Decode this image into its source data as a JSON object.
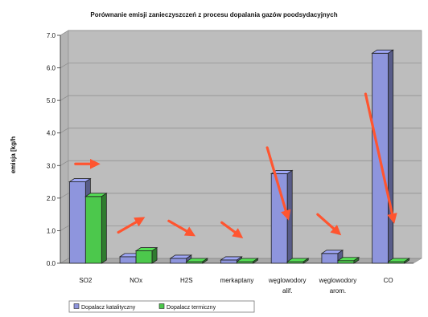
{
  "chart_data": {
    "type": "bar",
    "title": "Porównanie emisji zanieczyszczeń z procesu dopalania gazów poodsydacyjnych",
    "xlabel": "",
    "ylabel": "emisja [kg/h",
    "ylim": [
      0,
      7
    ],
    "yticks": [
      "0.0",
      "1.0",
      "2.0",
      "3.0",
      "4.0",
      "5.0",
      "6.0",
      "7.0"
    ],
    "grid": true,
    "legend_position": "bottom-left",
    "categories": [
      [
        "SO2"
      ],
      [
        "NOx"
      ],
      [
        "H2S"
      ],
      [
        "merkaptany"
      ],
      [
        "węglowodory",
        "alif."
      ],
      [
        "węglowodory",
        "arom."
      ],
      [
        "CO"
      ]
    ],
    "series": [
      {
        "name": "Dopalacz katalityczny",
        "color": "#8e95dd",
        "values": [
          2.5,
          0.2,
          0.15,
          0.1,
          2.75,
          0.3,
          6.45
        ]
      },
      {
        "name": "Dopalacz termiczny",
        "color": "#4cc84c",
        "values": [
          2.05,
          0.38,
          0.05,
          0.05,
          0.05,
          0.08,
          0.05
        ]
      }
    ],
    "annotations": {
      "arrow_color": "#ff5530",
      "arrows": [
        {
          "category": 0,
          "from": [
            -0.2,
            3.05
          ],
          "to": [
            0.2,
            3.05
          ]
        },
        {
          "category": 1,
          "from": [
            -0.35,
            0.95
          ],
          "to": [
            0.1,
            1.35
          ]
        },
        {
          "category": 2,
          "from": [
            -0.35,
            1.3
          ],
          "to": [
            0.1,
            0.9
          ]
        },
        {
          "category": 3,
          "from": [
            -0.3,
            1.25
          ],
          "to": [
            0.05,
            0.85
          ]
        },
        {
          "category": 4,
          "from": [
            -0.4,
            3.55
          ],
          "to": [
            0.0,
            1.45
          ]
        },
        {
          "category": 5,
          "from": [
            -0.4,
            1.5
          ],
          "to": [
            0.0,
            0.95
          ]
        },
        {
          "category": 6,
          "from": [
            -0.45,
            5.2
          ],
          "to": [
            0.1,
            1.35
          ]
        }
      ]
    }
  }
}
